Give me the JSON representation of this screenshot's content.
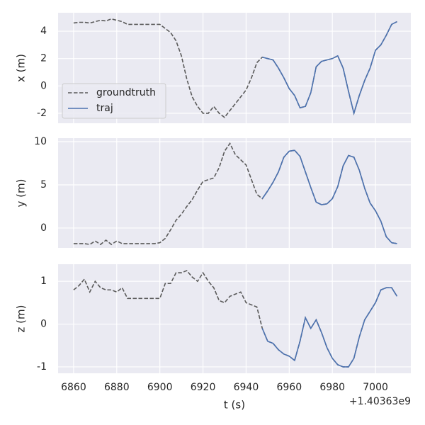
{
  "chart_data": [
    {
      "type": "line",
      "ylabel": "x (m)",
      "x": [
        1403636860,
        1403636862.5,
        1403636865,
        1403636867.5,
        1403636870,
        1403636872.5,
        1403636875,
        1403636877.5,
        1403636880,
        1403636882.5,
        1403636885,
        1403636887.5,
        1403636890,
        1403636892.5,
        1403636895,
        1403636897.5,
        1403636900,
        1403636902.5,
        1403636905,
        1403636907.5,
        1403636910,
        1403636912.5,
        1403636915,
        1403636917.5,
        1403636920,
        1403636922.5,
        1403636925,
        1403636927.5,
        1403636930,
        1403636932.5,
        1403636935,
        1403636937.5,
        1403636940,
        1403636942.5,
        1403636945,
        1403636947.5,
        1403636950,
        1403636952.5,
        1403636955,
        1403636957.5,
        1403636960,
        1403636962.5,
        1403636965,
        1403636967.5,
        1403636970,
        1403636972.5,
        1403636975,
        1403636977.5,
        1403636980,
        1403636982.5,
        1403636985,
        1403636987.5,
        1403636990,
        1403636992.5,
        1403636995,
        1403636997.5,
        1403637000,
        1403637002.5,
        1403637005,
        1403637007.5,
        1403637010
      ],
      "series": [
        {
          "name": "groundtruth",
          "color": "#5a5a5a",
          "linestyle": "dashed",
          "values": [
            4.6,
            4.65,
            4.65,
            4.6,
            4.7,
            4.8,
            4.75,
            4.9,
            4.8,
            4.7,
            4.5,
            4.5,
            4.5,
            4.5,
            4.5,
            4.5,
            4.5,
            4.2,
            3.9,
            3.3,
            2.2,
            0.5,
            -0.8,
            -1.5,
            -2.0,
            -2.0,
            -1.5,
            -2.0,
            -2.3,
            -1.8,
            -1.3,
            -0.8,
            -0.3,
            0.6,
            1.7,
            2.1,
            2.0,
            1.9,
            1.3,
            0.6,
            -0.2,
            -0.7,
            -1.6,
            -1.5,
            -0.5,
            1.4,
            1.8,
            1.9,
            2.0,
            2.2,
            1.3,
            -0.4,
            -2.0,
            -0.7,
            0.4,
            1.3,
            2.6,
            3.0,
            3.7,
            4.5,
            4.7
          ]
        },
        {
          "name": "traj",
          "color": "#4c72b0",
          "linestyle": "solid",
          "values": [
            null,
            null,
            null,
            null,
            null,
            null,
            null,
            null,
            null,
            null,
            null,
            null,
            null,
            null,
            null,
            null,
            null,
            null,
            null,
            null,
            null,
            null,
            null,
            null,
            null,
            null,
            null,
            null,
            null,
            null,
            null,
            null,
            null,
            null,
            null,
            2.1,
            2.0,
            1.9,
            1.3,
            0.6,
            -0.2,
            -0.7,
            -1.6,
            -1.5,
            -0.5,
            1.4,
            1.8,
            1.9,
            2.0,
            2.2,
            1.3,
            -0.4,
            -2.0,
            -0.7,
            0.4,
            1.3,
            2.6,
            3.0,
            3.7,
            4.5,
            4.7
          ]
        }
      ],
      "xlim": [
        1403636852.8,
        1403637016.4
      ],
      "xticks": [
        1403636860,
        1403636880,
        1403636900,
        1403636920,
        1403636940,
        1403636960,
        1403636980,
        1403637000
      ],
      "ylim": [
        -2.73,
        5.35
      ],
      "yticks": [
        -2,
        0,
        2,
        4
      ],
      "grid": true,
      "legend": "lower left"
    },
    {
      "type": "line",
      "ylabel": "y (m)",
      "x": [
        1403636860,
        1403636862.5,
        1403636865,
        1403636867.5,
        1403636870,
        1403636872.5,
        1403636875,
        1403636877.5,
        1403636880,
        1403636882.5,
        1403636885,
        1403636887.5,
        1403636890,
        1403636892.5,
        1403636895,
        1403636897.5,
        1403636900,
        1403636902.5,
        1403636905,
        1403636907.5,
        1403636910,
        1403636912.5,
        1403636915,
        1403636917.5,
        1403636920,
        1403636922.5,
        1403636925,
        1403636927.5,
        1403636930,
        1403636932.5,
        1403636935,
        1403636937.5,
        1403636940,
        1403636942.5,
        1403636945,
        1403636947.5,
        1403636950,
        1403636952.5,
        1403636955,
        1403636957.5,
        1403636960,
        1403636962.5,
        1403636965,
        1403636967.5,
        1403636970,
        1403636972.5,
        1403636975,
        1403636977.5,
        1403636980,
        1403636982.5,
        1403636985,
        1403636987.5,
        1403636990,
        1403636992.5,
        1403636995,
        1403636997.5,
        1403637000,
        1403637002.5,
        1403637005,
        1403637007.5,
        1403637010
      ],
      "series": [
        {
          "name": "groundtruth",
          "color": "#5a5a5a",
          "linestyle": "dashed",
          "values": [
            -1.8,
            -1.8,
            -1.8,
            -1.9,
            -1.5,
            -1.9,
            -1.4,
            -1.9,
            -1.5,
            -1.8,
            -1.8,
            -1.8,
            -1.8,
            -1.8,
            -1.8,
            -1.8,
            -1.7,
            -1.2,
            -0.2,
            0.9,
            1.6,
            2.5,
            3.3,
            4.4,
            5.4,
            5.6,
            5.8,
            7.0,
            8.9,
            9.8,
            8.5,
            7.9,
            7.3,
            5.6,
            3.9,
            3.4,
            4.3,
            5.3,
            6.5,
            8.2,
            8.9,
            9.0,
            8.3,
            6.5,
            4.7,
            3.0,
            2.7,
            2.8,
            3.4,
            4.8,
            7.2,
            8.4,
            8.2,
            6.7,
            4.6,
            2.9,
            2.0,
            0.8,
            -1.0,
            -1.7,
            -1.8
          ]
        },
        {
          "name": "traj",
          "color": "#4c72b0",
          "linestyle": "solid",
          "values": [
            null,
            null,
            null,
            null,
            null,
            null,
            null,
            null,
            null,
            null,
            null,
            null,
            null,
            null,
            null,
            null,
            null,
            null,
            null,
            null,
            null,
            null,
            null,
            null,
            null,
            null,
            null,
            null,
            null,
            null,
            null,
            null,
            null,
            null,
            null,
            3.4,
            4.3,
            5.3,
            6.5,
            8.2,
            8.9,
            9.0,
            8.3,
            6.5,
            4.7,
            3.0,
            2.7,
            2.8,
            3.4,
            4.8,
            7.2,
            8.4,
            8.2,
            6.7,
            4.6,
            2.9,
            2.0,
            0.8,
            -1.0,
            -1.7,
            -1.8
          ]
        }
      ],
      "xlim": [
        1403636852.8,
        1403637016.4
      ],
      "xticks": [
        1403636860,
        1403636880,
        1403636900,
        1403636920,
        1403636940,
        1403636960,
        1403636980,
        1403637000
      ],
      "ylim": [
        -2.3,
        10.41
      ],
      "yticks": [
        0,
        5,
        10
      ],
      "grid": true
    },
    {
      "type": "line",
      "ylabel": "z (m)",
      "xlabel": "t (s)",
      "x_offset": "+1.40363e9",
      "x": [
        1403636860,
        1403636862.5,
        1403636865,
        1403636867.5,
        1403636870,
        1403636872.5,
        1403636875,
        1403636877.5,
        1403636880,
        1403636882.5,
        1403636885,
        1403636887.5,
        1403636890,
        1403636892.5,
        1403636895,
        1403636897.5,
        1403636900,
        1403636902.5,
        1403636905,
        1403636907.5,
        1403636910,
        1403636912.5,
        1403636915,
        1403636917.5,
        1403636920,
        1403636922.5,
        1403636925,
        1403636927.5,
        1403636930,
        1403636932.5,
        1403636935,
        1403636937.5,
        1403636940,
        1403636942.5,
        1403636945,
        1403636947.5,
        1403636950,
        1403636952.5,
        1403636955,
        1403636957.5,
        1403636960,
        1403636962.5,
        1403636965,
        1403636967.5,
        1403636970,
        1403636972.5,
        1403636975,
        1403636977.5,
        1403636980,
        1403636982.5,
        1403636985,
        1403636987.5,
        1403636990,
        1403636992.5,
        1403636995,
        1403636997.5,
        1403637000,
        1403637002.5,
        1403637005,
        1403637007.5,
        1403637010
      ],
      "series": [
        {
          "name": "groundtruth",
          "color": "#5a5a5a",
          "linestyle": "dashed",
          "values": [
            0.8,
            0.9,
            1.05,
            0.75,
            1.0,
            0.85,
            0.8,
            0.8,
            0.75,
            0.85,
            0.6,
            0.6,
            0.6,
            0.6,
            0.6,
            0.6,
            0.6,
            0.95,
            0.95,
            1.2,
            1.2,
            1.25,
            1.1,
            1.0,
            1.2,
            1.0,
            0.85,
            0.55,
            0.5,
            0.65,
            0.7,
            0.75,
            0.5,
            0.45,
            0.4,
            -0.1,
            -0.4,
            -0.45,
            -0.6,
            -0.7,
            -0.75,
            -0.85,
            -0.4,
            0.15,
            -0.1,
            0.1,
            -0.2,
            -0.55,
            -0.8,
            -0.95,
            -1.0,
            -1.0,
            -0.8,
            -0.3,
            0.1,
            0.3,
            0.5,
            0.8,
            0.85,
            0.85,
            0.65
          ]
        },
        {
          "name": "traj",
          "color": "#4c72b0",
          "linestyle": "solid",
          "values": [
            null,
            null,
            null,
            null,
            null,
            null,
            null,
            null,
            null,
            null,
            null,
            null,
            null,
            null,
            null,
            null,
            null,
            null,
            null,
            null,
            null,
            null,
            null,
            null,
            null,
            null,
            null,
            null,
            null,
            null,
            null,
            null,
            null,
            null,
            null,
            -0.1,
            -0.4,
            -0.45,
            -0.6,
            -0.7,
            -0.75,
            -0.85,
            -0.4,
            0.15,
            -0.1,
            0.1,
            -0.2,
            -0.55,
            -0.8,
            -0.95,
            -1.0,
            -1.0,
            -0.8,
            -0.3,
            0.1,
            0.3,
            0.5,
            0.8,
            0.85,
            0.85,
            0.65
          ]
        }
      ],
      "xlim": [
        1403636852.8,
        1403637016.4
      ],
      "xticks": [
        {
          "value": 1403636860,
          "label": "6860"
        },
        {
          "value": 1403636880,
          "label": "6880"
        },
        {
          "value": 1403636900,
          "label": "6900"
        },
        {
          "value": 1403636920,
          "label": "6920"
        },
        {
          "value": 1403636940,
          "label": "6940"
        },
        {
          "value": 1403636960,
          "label": "6960"
        },
        {
          "value": 1403636980,
          "label": "6980"
        },
        {
          "value": 1403637000,
          "label": "7000"
        }
      ],
      "ylim": [
        -1.15,
        1.4
      ],
      "yticks": [
        -1,
        0,
        1
      ],
      "grid": true
    }
  ]
}
